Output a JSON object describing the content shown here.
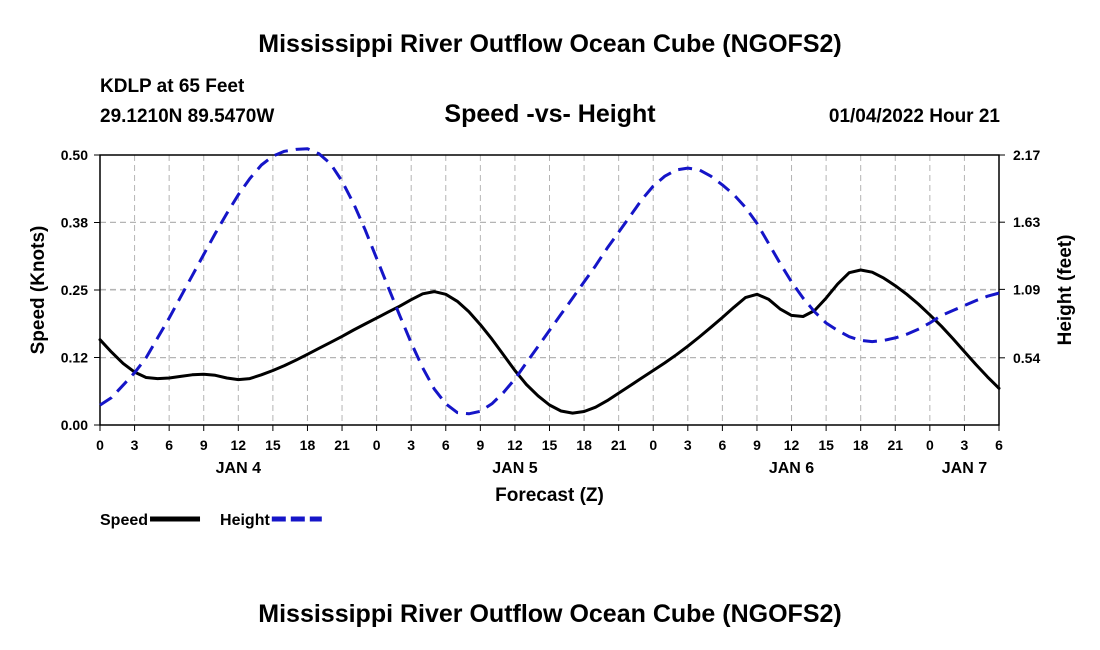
{
  "header": {
    "title": "Mississippi River Outflow Ocean Cube (NGOFS2)",
    "station": "KDLP at 65 Feet",
    "coords": "29.1210N  89.5470W",
    "subtitle": "Speed -vs- Height",
    "datetime": "01/04/2022 Hour 21"
  },
  "footer": {
    "title": "Mississippi River Outflow Ocean Cube (NGOFS2)"
  },
  "colors": {
    "speed": "#000000",
    "height": "#1515c8",
    "grid": "#b4b4b4"
  },
  "chart_data": {
    "type": "line",
    "xlabel": "Forecast (Z)",
    "ylabel": "Speed (Knots)",
    "y2label": "Height (feet)",
    "x_range_hours": [
      0,
      78
    ],
    "x_tick_labels": [
      "0",
      "3",
      "6",
      "9",
      "12",
      "15",
      "18",
      "21",
      "0",
      "3",
      "6",
      "9",
      "12",
      "15",
      "18",
      "21",
      "0",
      "3",
      "6",
      "9",
      "12",
      "15",
      "18",
      "21",
      "0",
      "3",
      "6"
    ],
    "day_labels": [
      {
        "label": "JAN 4",
        "hour": 12
      },
      {
        "label": "JAN 5",
        "hour": 36
      },
      {
        "label": "JAN 6",
        "hour": 60
      },
      {
        "label": "JAN 7",
        "hour": 75
      }
    ],
    "y_range": [
      0,
      0.5
    ],
    "y_ticks": [
      0.0,
      0.125,
      0.25,
      0.375,
      0.5
    ],
    "y_tick_labels": [
      "0.00",
      "0.12",
      "0.25",
      "0.38",
      "0.50"
    ],
    "y2_range": [
      0,
      2.17
    ],
    "y2_ticks": [
      0.54,
      1.09,
      1.63,
      2.17
    ],
    "y2_tick_labels": [
      "0.54",
      "1.09",
      "1.63",
      "2.17"
    ],
    "series": [
      {
        "name": "Speed",
        "axis": "left",
        "style": "solid",
        "x": [
          0,
          1,
          2,
          3,
          4,
          5,
          6,
          7,
          8,
          9,
          10,
          11,
          12,
          13,
          14,
          15,
          16,
          17,
          18,
          19,
          20,
          21,
          22,
          23,
          24,
          25,
          26,
          27,
          28,
          29,
          30,
          31,
          32,
          33,
          34,
          35,
          36,
          37,
          38,
          39,
          40,
          41,
          42,
          43,
          44,
          45,
          46,
          47,
          48,
          49,
          50,
          51,
          52,
          53,
          54,
          55,
          56,
          57,
          58,
          59,
          60,
          61,
          62,
          63,
          64,
          65,
          66,
          67,
          68,
          69,
          70,
          71,
          72,
          73,
          74,
          75,
          76,
          77,
          78
        ],
        "values": [
          0.158,
          0.135,
          0.114,
          0.098,
          0.088,
          0.086,
          0.087,
          0.09,
          0.093,
          0.094,
          0.092,
          0.087,
          0.084,
          0.086,
          0.093,
          0.101,
          0.11,
          0.12,
          0.131,
          0.142,
          0.153,
          0.164,
          0.176,
          0.187,
          0.198,
          0.209,
          0.22,
          0.232,
          0.243,
          0.247,
          0.242,
          0.229,
          0.21,
          0.186,
          0.159,
          0.13,
          0.101,
          0.075,
          0.054,
          0.037,
          0.026,
          0.022,
          0.025,
          0.033,
          0.045,
          0.059,
          0.073,
          0.087,
          0.101,
          0.115,
          0.13,
          0.146,
          0.163,
          0.181,
          0.199,
          0.218,
          0.236,
          0.242,
          0.233,
          0.215,
          0.203,
          0.201,
          0.212,
          0.235,
          0.261,
          0.282,
          0.287,
          0.283,
          0.272,
          0.258,
          0.242,
          0.224,
          0.204,
          0.183,
          0.16,
          0.136,
          0.112,
          0.089,
          0.068
        ]
      },
      {
        "name": "Height",
        "axis": "right",
        "style": "dashed",
        "x": [
          0,
          1,
          2,
          3,
          4,
          5,
          6,
          7,
          8,
          9,
          10,
          11,
          12,
          13,
          14,
          15,
          16,
          17,
          18,
          19,
          20,
          21,
          22,
          23,
          24,
          25,
          26,
          27,
          28,
          29,
          30,
          31,
          32,
          33,
          34,
          35,
          36,
          37,
          38,
          39,
          40,
          41,
          42,
          43,
          44,
          45,
          46,
          47,
          48,
          49,
          50,
          51,
          52,
          53,
          54,
          55,
          56,
          57,
          58,
          59,
          60,
          61,
          62,
          63,
          64,
          65,
          66,
          67,
          68,
          69,
          70,
          71,
          72,
          73,
          74,
          75,
          76,
          77,
          78
        ],
        "values": [
          0.16,
          0.22,
          0.32,
          0.42,
          0.54,
          0.7,
          0.86,
          1.03,
          1.2,
          1.37,
          1.54,
          1.7,
          1.85,
          1.98,
          2.09,
          2.16,
          2.2,
          2.215,
          2.22,
          2.18,
          2.1,
          1.96,
          1.78,
          1.57,
          1.34,
          1.11,
          0.88,
          0.66,
          0.46,
          0.29,
          0.17,
          0.1,
          0.09,
          0.11,
          0.17,
          0.26,
          0.37,
          0.5,
          0.63,
          0.76,
          0.89,
          1.02,
          1.15,
          1.28,
          1.42,
          1.55,
          1.68,
          1.81,
          1.92,
          2.0,
          2.05,
          2.065,
          2.05,
          2.0,
          1.93,
          1.85,
          1.75,
          1.62,
          1.46,
          1.3,
          1.15,
          1.02,
          0.91,
          0.82,
          0.76,
          0.71,
          0.68,
          0.67,
          0.68,
          0.7,
          0.73,
          0.77,
          0.82,
          0.88,
          0.92,
          0.96,
          1.0,
          1.035,
          1.06
        ]
      }
    ],
    "legend": [
      {
        "label": "Speed",
        "style": "solid"
      },
      {
        "label": "Height",
        "style": "dashed"
      }
    ],
    "legend_position": "bottom-left",
    "grid": true
  }
}
